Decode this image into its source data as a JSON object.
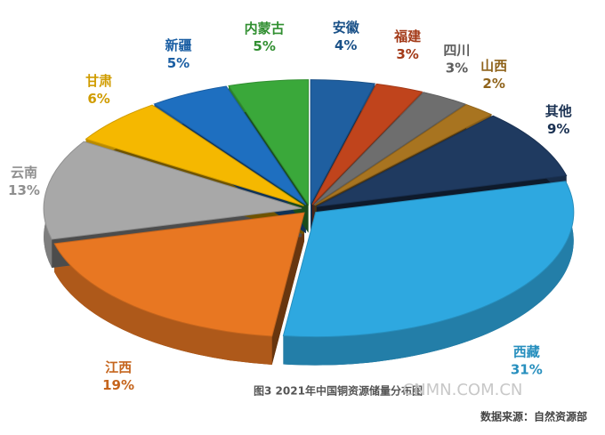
{
  "chart_data": {
    "type": "pie",
    "categories": [
      "安徽",
      "福建",
      "四川",
      "山西",
      "其他",
      "西藏",
      "江西",
      "云南",
      "甘肃",
      "新疆",
      "内蒙古"
    ],
    "values": [
      4,
      3,
      3,
      2,
      9,
      31,
      19,
      13,
      6,
      5,
      5
    ],
    "value_labels": [
      "4%",
      "3%",
      "3%",
      "2%",
      "9%",
      "31%",
      "19%",
      "13%",
      "6%",
      "5%",
      "5%"
    ],
    "colors": [
      "#1f5fa0",
      "#c0441c",
      "#6e6e6e",
      "#a87420",
      "#1f3a60",
      "#2ea8e0",
      "#e87722",
      "#a8a8a8",
      "#f5b800",
      "#1e6fc0",
      "#3aa83a"
    ],
    "caption": "图3 2021年中国铜资源储量分布图",
    "watermark": "CNMN.COM.CN",
    "source": "数据来源：自然资源部"
  }
}
